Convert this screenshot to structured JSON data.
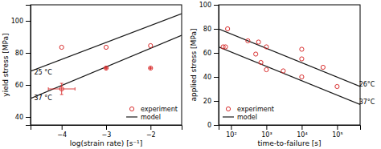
{
  "chart_data": [
    {
      "type": "line",
      "x_label": "log(strain rate) [s⁻¹]",
      "y_label": "yield stress [MPa]",
      "xlim": [
        -4.7,
        -1.3
      ],
      "xticks": [
        {
          "value": -4,
          "label": "−4"
        },
        {
          "value": -3,
          "label": "−3"
        },
        {
          "value": -2,
          "label": "−2"
        }
      ],
      "ylim": [
        35,
        110
      ],
      "yticks": [
        40,
        60,
        80,
        100
      ],
      "grid": false,
      "legend": "lower right",
      "series": [
        {
          "name": "model",
          "type": "line",
          "color": "#1a1a1a",
          "x": [
            -4.7,
            -1.3
          ],
          "values": [
            68.5,
            104.5
          ]
        },
        {
          "name": "model",
          "type": "line",
          "color": "#1a1a1a",
          "x": [
            -4.7,
            -1.3
          ],
          "values": [
            51.5,
            91.0
          ]
        },
        {
          "name": "experiment",
          "type": "scatter",
          "marker": "circle",
          "color": "#d93030",
          "x": [
            -4.0,
            -3.0,
            -2.0
          ],
          "values": [
            83.5,
            83.5,
            84.5
          ]
        },
        {
          "name": "experiment",
          "type": "scatter",
          "marker": "circle",
          "color": "#d93030",
          "x": [
            -4.0,
            -3.0,
            -2.0
          ],
          "values": [
            57.5,
            70.5,
            70.5
          ],
          "yerr": [
            3.5,
            0.0,
            0.0
          ],
          "xerr": [
            0.3,
            0.0,
            0.0
          ]
        }
      ],
      "annotations": [
        {
          "text": "25 °C",
          "x": -4.62,
          "y": 68
        },
        {
          "text": "37 °C",
          "x": -4.62,
          "y": 52
        }
      ]
    },
    {
      "type": "line",
      "x_label": "time-to-failure [s]",
      "y_label": "applied stress [MPa]",
      "log": "x",
      "xlim": [
        44.66835921509631,
        446683.5921509635
      ],
      "xticks": [
        {
          "value": 100,
          "label": "10²"
        },
        {
          "value": 1000,
          "label": "10³"
        },
        {
          "value": 10000,
          "label": "10⁴"
        },
        {
          "value": 100000,
          "label": "10⁵"
        }
      ],
      "ylim": [
        0,
        100
      ],
      "yticks": [
        0,
        20,
        40,
        60,
        80,
        100
      ],
      "grid": false,
      "legend": "lower left",
      "series": [
        {
          "name": "model",
          "type": "line",
          "color": "#1a1a1a",
          "x": [
            44.66835921509631,
            446683.5921509635
          ],
          "values": [
            80.0,
            32.0
          ]
        },
        {
          "name": "model",
          "type": "line",
          "color": "#1a1a1a",
          "x": [
            44.66835921509631,
            446683.5921509635
          ],
          "values": [
            65.0,
            17.0
          ]
        },
        {
          "name": "experiment",
          "type": "scatter",
          "marker": "circle",
          "color": "#d93030",
          "x": [
            60,
            70,
            80,
            300,
            700,
            1000,
            10000,
            10000
          ],
          "values": [
            65,
            65,
            80,
            70,
            52,
            65,
            63,
            55
          ]
        },
        {
          "name": "experiment",
          "type": "scatter",
          "marker": "circle",
          "color": "#d93030",
          "x": [
            500,
            600,
            1000,
            3000,
            10000,
            40000,
            100000
          ],
          "values": [
            59,
            69,
            46,
            45,
            40,
            48,
            32
          ]
        }
      ],
      "annotations": [
        {
          "text": "26°C",
          "x": 416869.3834703354,
          "y": 34
        },
        {
          "text": "37°C",
          "x": 416869.3834703354,
          "y": 19
        }
      ]
    }
  ]
}
